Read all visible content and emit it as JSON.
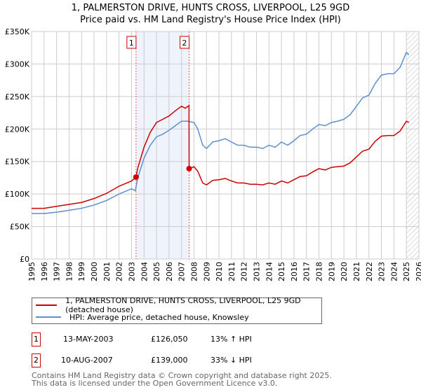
{
  "title": "1, PALMERSTON DRIVE, HUNTS CROSS, LIVERPOOL, L25 9GD",
  "subtitle": "Price paid vs. HM Land Registry's House Price Index (HPI)",
  "chart_data": {
    "type": "line",
    "ylim": [
      0,
      350000
    ],
    "xlim": [
      1995,
      2026
    ],
    "yticks": [
      0,
      50000,
      100000,
      150000,
      200000,
      250000,
      300000,
      350000
    ],
    "ytick_labels": [
      "£0",
      "£50K",
      "£100K",
      "£150K",
      "£200K",
      "£250K",
      "£300K",
      "£350K"
    ],
    "xtick_labels": [
      "1995",
      "1996",
      "1997",
      "1998",
      "1999",
      "2000",
      "2001",
      "2002",
      "2003",
      "2004",
      "2005",
      "2006",
      "2007",
      "2008",
      "2009",
      "2010",
      "2011",
      "2012",
      "2013",
      "2014",
      "2015",
      "2016",
      "2017",
      "2018",
      "2019",
      "2020",
      "2021",
      "2022",
      "2023",
      "2024",
      "2025",
      "2026"
    ],
    "grid": true,
    "shaded_range": [
      2003.36,
      2007.61
    ],
    "hatched_from": 2025.0,
    "colors": {
      "property": "#cc0000",
      "hpi": "#5b8fd0"
    },
    "series": [
      {
        "name": "1, PALMERSTON DRIVE, HUNTS CROSS, LIVERPOOL, L25 9GD (detached house)",
        "x": [
          1995,
          1996,
          1997,
          1998,
          1999,
          2000,
          2001,
          2002,
          2003,
          2003.36,
          2003.5,
          2004,
          2004.5,
          2005,
          2005.5,
          2006,
          2006.5,
          2007,
          2007.3,
          2007.6,
          2007.61,
          2008,
          2008.3,
          2008.7,
          2009,
          2009.5,
          2010,
          2010.5,
          2011,
          2011.5,
          2012,
          2012.5,
          2013,
          2013.5,
          2014,
          2014.5,
          2015,
          2015.5,
          2016,
          2016.5,
          2017,
          2017.5,
          2018,
          2018.5,
          2019,
          2019.5,
          2020,
          2020.5,
          2021,
          2021.5,
          2022,
          2022.5,
          2023,
          2023.5,
          2024,
          2024.5,
          2025,
          2025.2
        ],
        "values": [
          78000,
          78000,
          81000,
          84000,
          87000,
          93000,
          101000,
          112000,
          120000,
          126050,
          140000,
          172000,
          195000,
          210000,
          215000,
          220000,
          228000,
          235000,
          232000,
          236000,
          139000,
          142000,
          135000,
          117000,
          114000,
          121000,
          122000,
          124000,
          120000,
          117000,
          117000,
          115000,
          115000,
          114000,
          117000,
          115000,
          120000,
          117000,
          122000,
          127000,
          128000,
          134000,
          139000,
          137000,
          141000,
          142000,
          143000,
          148000,
          157000,
          166000,
          169000,
          181000,
          189000,
          190000,
          190000,
          197000,
          212000,
          210000
        ]
      },
      {
        "name": "HPI: Average price, detached house, Knowsley",
        "x": [
          1995,
          1996,
          1997,
          1998,
          1999,
          2000,
          2001,
          2002,
          2003,
          2003.3,
          2003.5,
          2004,
          2004.5,
          2005,
          2005.5,
          2006,
          2006.5,
          2007,
          2007.5,
          2008,
          2008.3,
          2008.7,
          2009,
          2009.5,
          2010,
          2010.5,
          2011,
          2011.5,
          2012,
          2012.5,
          2013,
          2013.5,
          2014,
          2014.5,
          2015,
          2015.5,
          2016,
          2016.5,
          2017,
          2017.5,
          2018,
          2018.5,
          2019,
          2019.5,
          2020,
          2020.5,
          2021,
          2021.5,
          2022,
          2022.5,
          2023,
          2023.5,
          2024,
          2024.5,
          2025,
          2025.2
        ],
        "values": [
          70000,
          70000,
          72000,
          75000,
          78000,
          83000,
          90000,
          100000,
          108000,
          105000,
          125000,
          155000,
          175000,
          188000,
          192000,
          198000,
          205000,
          212000,
          212000,
          210000,
          200000,
          175000,
          170000,
          180000,
          182000,
          185000,
          180000,
          175000,
          175000,
          172000,
          172000,
          170000,
          175000,
          172000,
          180000,
          175000,
          182000,
          190000,
          192000,
          200000,
          207000,
          205000,
          210000,
          212000,
          215000,
          222000,
          235000,
          248000,
          252000,
          270000,
          283000,
          285000,
          285000,
          295000,
          318000,
          314000
        ]
      }
    ],
    "sales": [
      {
        "label": "1",
        "x": 2003.36,
        "value": 126050
      },
      {
        "label": "2",
        "x": 2007.61,
        "value": 139000
      }
    ]
  },
  "legend": {
    "property": "1, PALMERSTON DRIVE, HUNTS CROSS, LIVERPOOL, L25 9GD (detached house)",
    "hpi": "HPI: Average price, detached house, Knowsley"
  },
  "transactions": [
    {
      "num": "1",
      "date": "13-MAY-2003",
      "price": "£126,050",
      "hpi": "13% ↑ HPI"
    },
    {
      "num": "2",
      "date": "10-AUG-2007",
      "price": "£139,000",
      "hpi": "33% ↓ HPI"
    }
  ],
  "footer": {
    "line1": "Contains HM Land Registry data © Crown copyright and database right 2025.",
    "line2": "This data is licensed under the Open Government Licence v3.0."
  }
}
